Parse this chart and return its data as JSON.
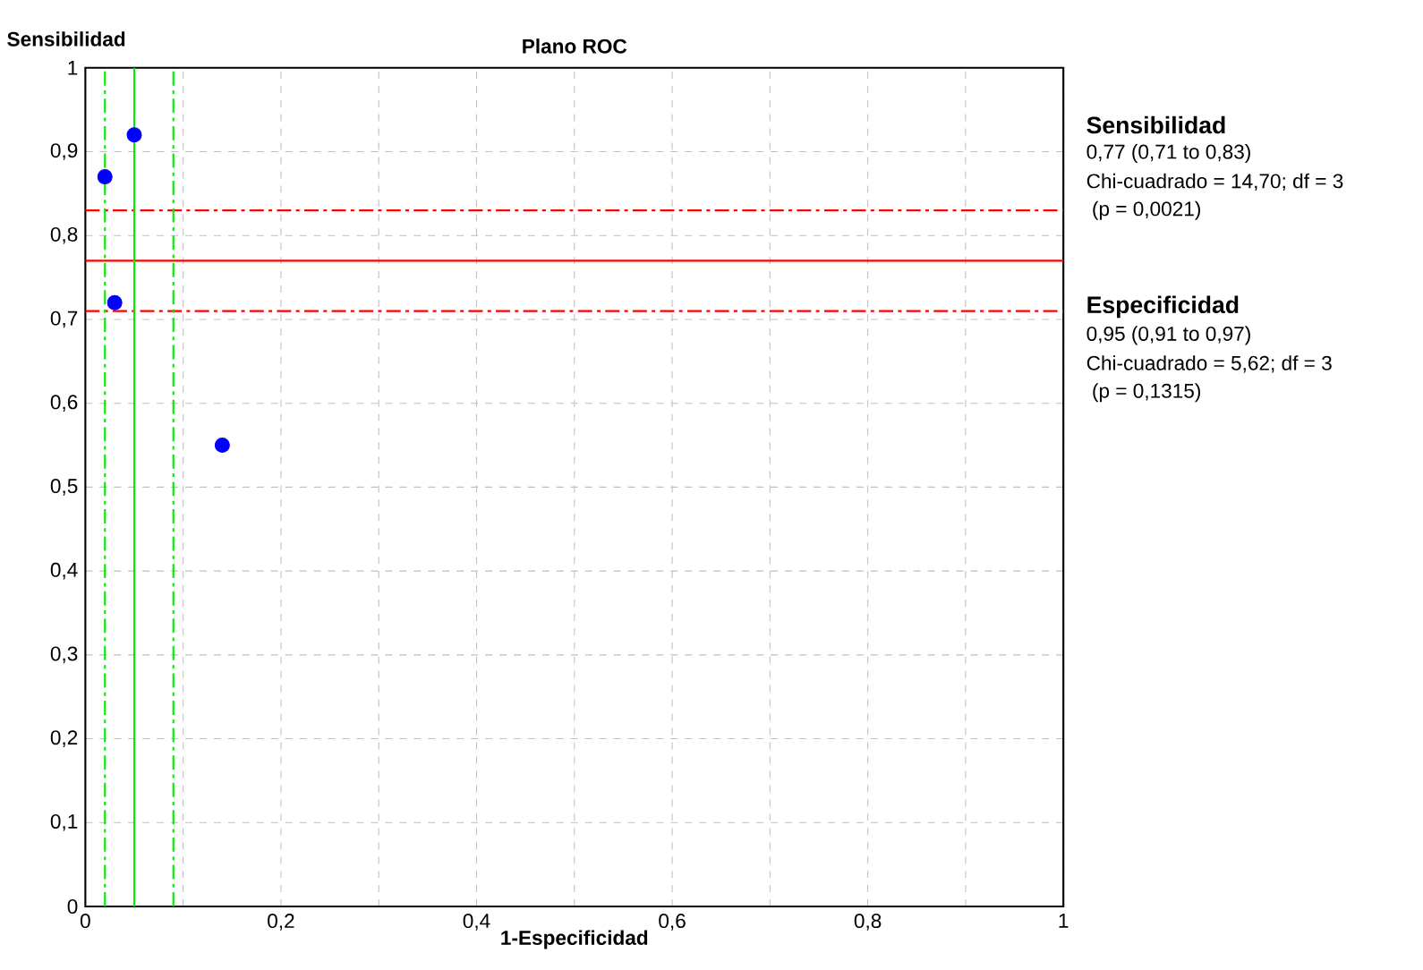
{
  "chart_data": {
    "type": "scatter",
    "title": "Plano ROC",
    "xlabel": "1-Especificidad",
    "ylabel": "Sensibilidad",
    "series": [
      {
        "color": "#0000ff",
        "x": [
          0.05,
          0.02,
          0.03,
          0.14
        ],
        "values": [
          0.92,
          0.87,
          0.72,
          0.55
        ]
      }
    ],
    "xlim": [
      0,
      1
    ],
    "ylim": [
      0,
      1
    ],
    "xticks": [
      0,
      {
        "value": 0.1,
        "label": null
      },
      "0,2",
      {
        "value": 0.3,
        "label": null
      },
      "0,4",
      {
        "value": 0.5,
        "label": null
      },
      "0,6",
      {
        "value": 0.7,
        "label": null
      },
      "0,8",
      {
        "value": 0.9,
        "label": null
      },
      1
    ],
    "yticks": [
      0,
      "0,1",
      "0,2",
      "0,3",
      "0,4",
      "0,5",
      "0,6",
      "0,7",
      "0,8",
      "0,9",
      1
    ],
    "grid": true,
    "ref_lines": [
      {
        "axis": "y",
        "value": 0.77,
        "color": "#ff0000",
        "line_style": "solid"
      },
      {
        "axis": "y",
        "value": 0.71,
        "color": "#ff0000",
        "line_style": "dashdot"
      },
      {
        "axis": "y",
        "value": 0.83,
        "color": "#ff0000",
        "line_style": "dashdot"
      },
      {
        "axis": "x",
        "value": 0.05,
        "color": "#00ee00",
        "line_style": "solid"
      },
      {
        "axis": "x",
        "value": 0.02,
        "color": "#00ee00",
        "line_style": "dashdot"
      },
      {
        "axis": "x",
        "value": 0.09,
        "color": "#00ee00",
        "line_style": "dashdot"
      }
    ],
    "annotations": [
      "Sensibilidad",
      "0,77 (0,71 to 0,83)",
      "Chi-cuadrado = 14,70; df =  3",
      " (p = 0,0021)",
      "Especificidad",
      "0,95 (0,91 to 0,97)",
      "Chi-cuadrado = 5,62; df =  3",
      " (p = 0,1315)"
    ]
  }
}
